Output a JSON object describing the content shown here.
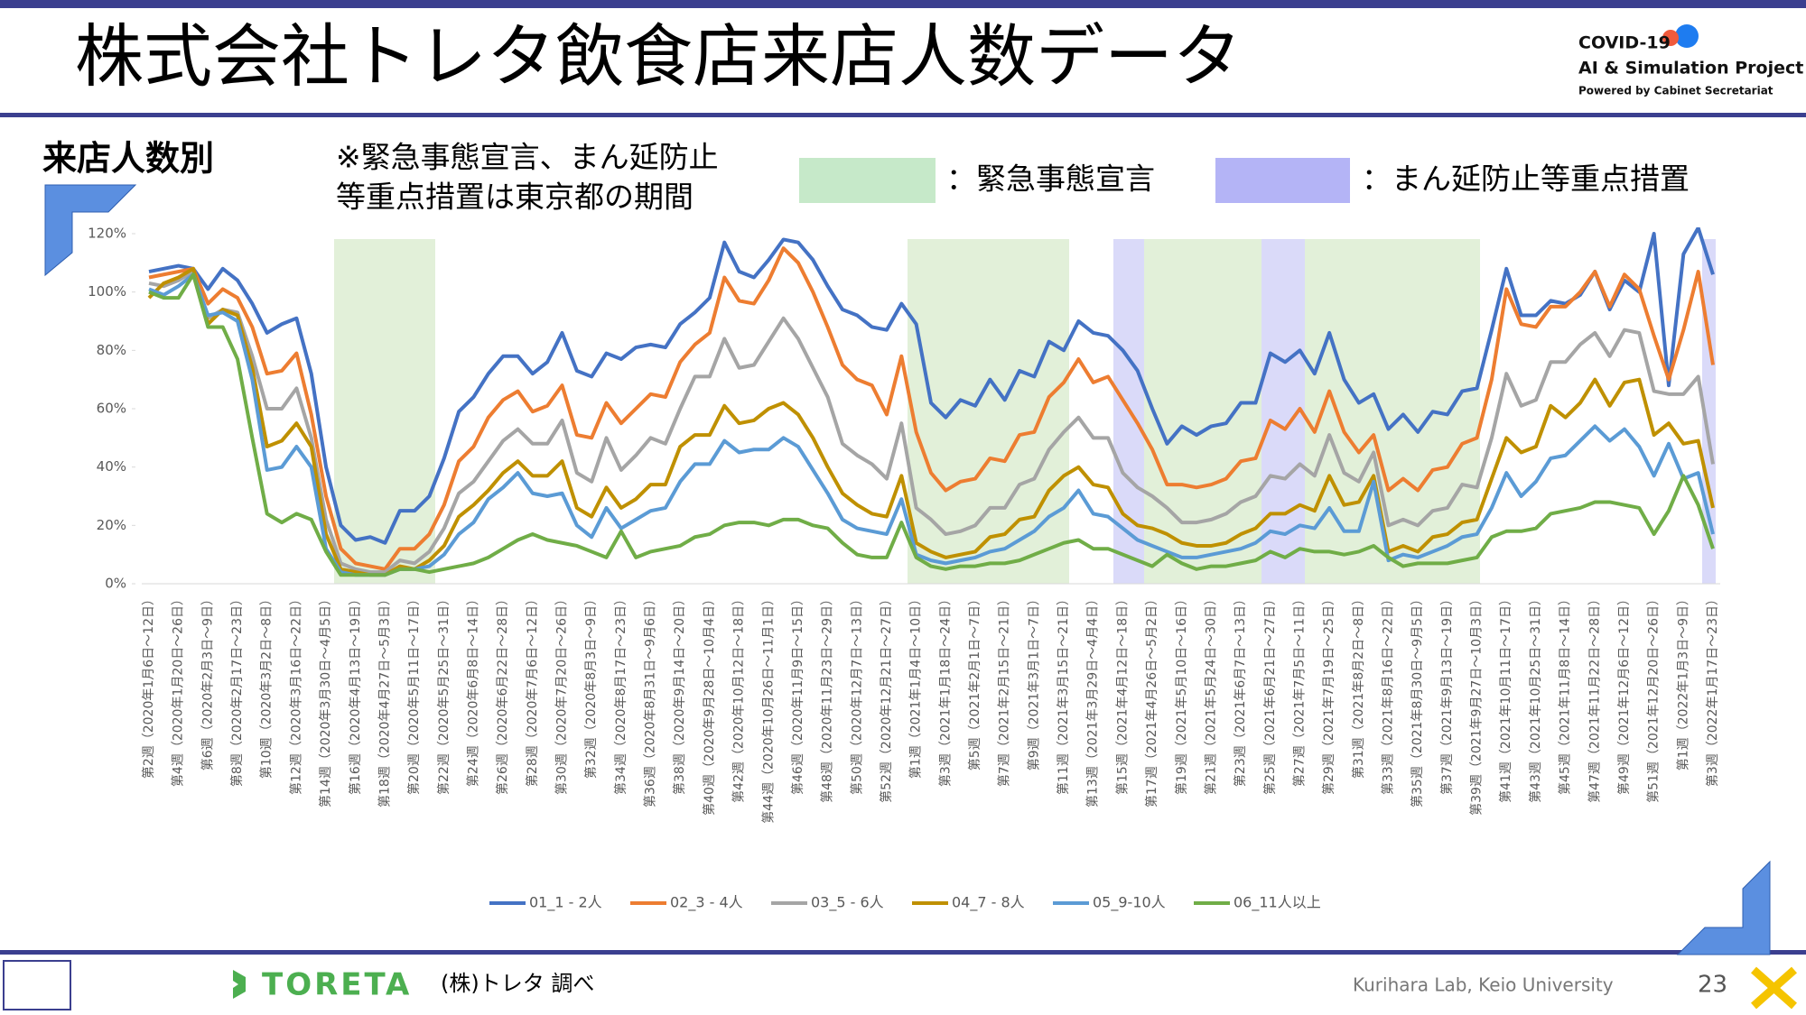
{
  "header": {
    "title": "株式会社トレタ飲食店来店人数データ",
    "logo_line1": "COVID-19",
    "logo_line2": "AI & Simulation Project",
    "logo_line3": "Powered by Cabinet Secretariat"
  },
  "subheading": "来店人数別",
  "note_line1": "※緊急事態宣言、まん延防止",
  "note_line2": "等重点措置は東京都の期間",
  "key_emergency": "：緊急事態宣言",
  "key_priority": "：まん延防止等重点措置",
  "footer": {
    "brand": "TORETA",
    "source": "(株)トレタ 調べ",
    "lab": "Kurihara Lab, Keio University",
    "page": "23"
  },
  "chart_data": {
    "type": "line",
    "grid": false,
    "categories": [
      "第2週（2020年1月6日～12日）",
      null,
      "第4週（2020年1月20日～26日）",
      null,
      "第6週（2020年2月3日～9日）",
      null,
      "第8週（2020年2月17日～23日）",
      null,
      "第10週（2020年3月2日～8日）",
      null,
      "第12週（2020年3月16日～22日）",
      null,
      "第14週（2020年3月30日～4月5日）",
      null,
      "第16週（2020年4月13日～19日）",
      null,
      "第18週（2020年4月27日～5月3日）",
      null,
      "第20週（2020年5月11日～17日）",
      null,
      "第22週（2020年5月25日～31日）",
      null,
      "第24週（2020年6月8日～14日）",
      null,
      "第26週（2020年6月22日～28日）",
      null,
      "第28週（2020年7月6日～12日）",
      null,
      "第30週（2020年7月20日～26日）",
      null,
      "第32週（2020年8月3日～9日）",
      null,
      "第34週（2020年8月17日～23日）",
      null,
      "第36週（2020年8月31日～9月6日）",
      null,
      "第38週（2020年9月14日～20日）",
      null,
      "第40週（2020年9月28日～10月4日）",
      null,
      "第42週（2020年10月12日～18日）",
      null,
      "第44週（2020年10月26日～11月1日）",
      null,
      "第46週（2020年11月9日～15日）",
      null,
      "第48週（2020年11月23日～29日）",
      null,
      "第50週（2020年12月7日～13日）",
      null,
      "第52週（2020年12月21日～27日）",
      null,
      "第1週（2021年1月4日～10日）",
      null,
      "第3週（2021年1月18日～24日）",
      null,
      "第5週（2021年2月1日～7日）",
      null,
      "第7週（2021年2月15日～21日）",
      null,
      "第9週（2021年3月1日～7日）",
      null,
      "第11週（2021年3月15日～21日）",
      null,
      "第13週（2021年3月29日～4月4日）",
      null,
      "第15週（2021年4月12日～18日）",
      null,
      "第17週（2021年4月26日～5月2日）",
      null,
      "第19週（2021年5月10日～16日）",
      null,
      "第21週（2021年5月24日～30日）",
      null,
      "第23週（2021年6月7日～13日）",
      null,
      "第25週（2021年6月21日～27日）",
      null,
      "第27週（2021年7月5日～11日）",
      null,
      "第29週（2021年7月19日～25日）",
      null,
      "第31週（2021年8月2日～8日）",
      null,
      "第33週（2021年8月16日～22日）",
      null,
      "第35週（2021年8月30日～9月5日）",
      null,
      "第37週（2021年9月13日～19日）",
      null,
      "第39週（2021年9月27日～10月3日）",
      null,
      "第41週（2021年10月11日～17日）",
      null,
      "第43週（2021年10月25日～31日）",
      null,
      "第45週（2021年11月8日～14日）",
      null,
      "第47週（2021年11月22日～28日）",
      null,
      "第49週（2021年12月6日～12日）",
      null,
      "第51週（2021年12月20日～26日）",
      null,
      "第1週（2022年1月3日～9日）",
      null,
      "第3週（2022年1月17日～23日）"
    ],
    "ylim": [
      0,
      120
    ],
    "yticks": [
      {
        "value": 0,
        "label": "0%"
      },
      {
        "value": 20,
        "label": "20%"
      },
      {
        "value": 40,
        "label": "40%"
      },
      {
        "value": 60,
        "label": "60%"
      },
      {
        "value": 80,
        "label": "80%"
      },
      {
        "value": 100,
        "label": "100%"
      },
      {
        "value": 120,
        "label": "120%"
      }
    ],
    "series": [
      {
        "name": "01_1 - 2人",
        "color": "#4472c4",
        "values": [
          107,
          108,
          109,
          108,
          101,
          108,
          104,
          96,
          86,
          89,
          91,
          72,
          40,
          20,
          15,
          16,
          14,
          25,
          25,
          30,
          43,
          59,
          64,
          72,
          78,
          78,
          72,
          76,
          86,
          73,
          71,
          79,
          77,
          81,
          82,
          81,
          89,
          93,
          98,
          117,
          107,
          105,
          111,
          118,
          117,
          111,
          102,
          94,
          92,
          88,
          87,
          96,
          89,
          62,
          57,
          63,
          61,
          70,
          63,
          73,
          71,
          83,
          80,
          90,
          86,
          85,
          80,
          73,
          60,
          48,
          54,
          51,
          54,
          55,
          62,
          62,
          79,
          76,
          80,
          72,
          86,
          70,
          62,
          65,
          53,
          58,
          52,
          59,
          58,
          66,
          67,
          87,
          108,
          92,
          92,
          97,
          96,
          99,
          107,
          94,
          104,
          100,
          120,
          68,
          113,
          122,
          106
        ]
      },
      {
        "name": "02_3 - 4人",
        "color": "#ed7d31",
        "values": [
          105,
          106,
          107,
          108,
          96,
          101,
          98,
          88,
          72,
          73,
          79,
          58,
          30,
          12,
          7,
          6,
          5,
          12,
          12,
          17,
          27,
          42,
          47,
          57,
          63,
          66,
          59,
          61,
          68,
          51,
          50,
          62,
          55,
          60,
          65,
          64,
          76,
          82,
          86,
          105,
          97,
          96,
          104,
          115,
          110,
          100,
          88,
          75,
          70,
          68,
          58,
          78,
          52,
          38,
          32,
          35,
          36,
          43,
          42,
          51,
          52,
          64,
          69,
          77,
          69,
          71,
          63,
          55,
          46,
          34,
          34,
          33,
          34,
          36,
          42,
          43,
          56,
          53,
          60,
          52,
          66,
          52,
          45,
          51,
          32,
          36,
          32,
          39,
          40,
          48,
          50,
          70,
          101,
          89,
          88,
          95,
          95,
          100,
          107,
          95,
          106,
          101,
          85,
          70,
          87,
          107,
          75
        ]
      },
      {
        "name": "03_5 - 6人",
        "color": "#a5a5a5",
        "values": [
          103,
          102,
          104,
          107,
          91,
          94,
          93,
          78,
          60,
          60,
          67,
          50,
          22,
          7,
          5,
          4,
          4,
          8,
          7,
          11,
          19,
          31,
          35,
          42,
          49,
          53,
          48,
          48,
          56,
          38,
          35,
          50,
          39,
          44,
          50,
          48,
          60,
          71,
          71,
          84,
          74,
          75,
          83,
          91,
          84,
          74,
          64,
          48,
          44,
          41,
          36,
          55,
          26,
          22,
          17,
          18,
          20,
          26,
          26,
          34,
          36,
          46,
          52,
          57,
          50,
          50,
          38,
          33,
          30,
          26,
          21,
          21,
          22,
          24,
          28,
          30,
          37,
          36,
          41,
          37,
          51,
          38,
          35,
          45,
          20,
          22,
          20,
          25,
          26,
          34,
          33,
          50,
          72,
          61,
          63,
          76,
          76,
          82,
          86,
          78,
          87,
          86,
          66,
          65,
          65,
          71,
          41
        ]
      },
      {
        "name": "04_7 - 8人",
        "color": "#bf9000",
        "values": [
          98,
          103,
          105,
          108,
          89,
          94,
          92,
          74,
          47,
          49,
          55,
          47,
          17,
          5,
          4,
          3,
          3,
          6,
          5,
          8,
          13,
          23,
          27,
          32,
          38,
          42,
          37,
          37,
          42,
          26,
          23,
          33,
          26,
          29,
          34,
          34,
          47,
          51,
          51,
          61,
          55,
          56,
          60,
          62,
          58,
          50,
          40,
          31,
          27,
          24,
          23,
          37,
          14,
          11,
          9,
          10,
          11,
          16,
          17,
          22,
          23,
          32,
          37,
          40,
          34,
          33,
          24,
          20,
          19,
          17,
          14,
          13,
          13,
          14,
          17,
          19,
          24,
          24,
          27,
          25,
          37,
          27,
          28,
          37,
          11,
          13,
          11,
          16,
          17,
          21,
          22,
          36,
          50,
          45,
          47,
          61,
          57,
          62,
          70,
          61,
          69,
          70,
          51,
          55,
          48,
          49,
          26
        ]
      },
      {
        "name": "05_9-10人",
        "color": "#5b9bd5",
        "values": [
          101,
          99,
          102,
          106,
          92,
          93,
          90,
          70,
          39,
          40,
          47,
          40,
          12,
          4,
          3,
          3,
          3,
          5,
          5,
          6,
          10,
          17,
          21,
          29,
          33,
          38,
          31,
          30,
          31,
          20,
          16,
          26,
          19,
          22,
          25,
          26,
          35,
          41,
          41,
          49,
          45,
          46,
          46,
          50,
          47,
          39,
          31,
          22,
          19,
          18,
          17,
          29,
          10,
          8,
          7,
          8,
          9,
          11,
          12,
          15,
          18,
          23,
          26,
          32,
          24,
          23,
          19,
          15,
          13,
          11,
          9,
          9,
          10,
          11,
          12,
          14,
          18,
          17,
          20,
          19,
          26,
          18,
          18,
          35,
          8,
          10,
          9,
          11,
          13,
          16,
          17,
          26,
          38,
          30,
          35,
          43,
          44,
          49,
          54,
          49,
          53,
          47,
          37,
          48,
          36,
          38,
          17
        ]
      },
      {
        "name": "06_11人以上",
        "color": "#70ad47",
        "values": [
          100,
          98,
          98,
          106,
          88,
          88,
          77,
          50,
          24,
          21,
          24,
          22,
          11,
          3,
          3,
          3,
          3,
          5,
          5,
          4,
          5,
          6,
          7,
          9,
          12,
          15,
          17,
          15,
          14,
          13,
          11,
          9,
          18,
          9,
          11,
          12,
          13,
          16,
          17,
          20,
          21,
          21,
          20,
          22,
          22,
          20,
          19,
          14,
          10,
          9,
          9,
          21,
          9,
          6,
          5,
          6,
          6,
          7,
          7,
          8,
          10,
          12,
          14,
          15,
          12,
          12,
          10,
          8,
          6,
          10,
          7,
          5,
          6,
          6,
          7,
          8,
          11,
          9,
          12,
          11,
          11,
          10,
          11,
          13,
          9,
          6,
          7,
          7,
          7,
          8,
          9,
          16,
          18,
          18,
          19,
          24,
          25,
          26,
          28,
          28,
          27,
          26,
          17,
          25,
          37,
          27,
          12
        ]
      }
    ]
  }
}
